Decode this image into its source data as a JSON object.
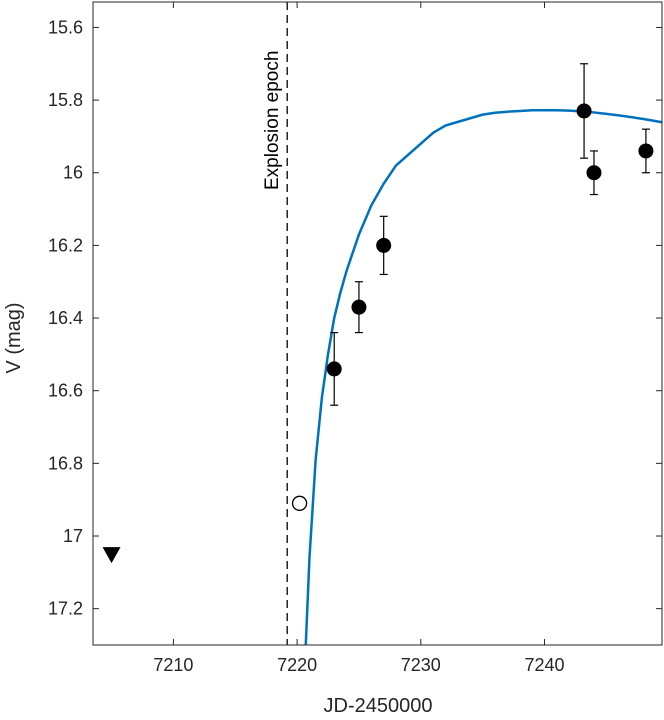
{
  "chart_data": {
    "type": "scatter",
    "xlabel": "JD-2450000",
    "ylabel": "V (mag)",
    "xlim": [
      7203.5,
      7249.5
    ],
    "ylim": [
      15.53,
      17.3
    ],
    "y_reversed": true,
    "grid": false,
    "xticks": [
      7210,
      7220,
      7230,
      7240
    ],
    "yticks": [
      15.6,
      15.8,
      16,
      16.2,
      16.4,
      16.6,
      16.8,
      17,
      17.2
    ],
    "ytick_labels": [
      "15.6",
      "15.8",
      "16",
      "16.2",
      "16.4",
      "16.6",
      "16.8",
      "17",
      "17.2"
    ],
    "detections": {
      "x": [
        7223,
        7225,
        7227,
        7243.2,
        7244,
        7248.2
      ],
      "y": [
        16.54,
        16.37,
        16.2,
        15.83,
        16.0,
        15.94
      ],
      "err": [
        0.1,
        0.07,
        0.08,
        0.13,
        0.06,
        0.06
      ],
      "color": "#000000"
    },
    "open_point": {
      "x": 7220.2,
      "y": 16.91
    },
    "upper_limit": {
      "x": 7205,
      "y": 17.05
    },
    "explosion_epoch": {
      "x": 7219.2,
      "label": "Explosion epoch"
    },
    "fit_curve": {
      "color": "#0072BD",
      "x": [
        7220.7,
        7221,
        7221.5,
        7222,
        7222.5,
        7223,
        7223.5,
        7224,
        7225,
        7226,
        7227,
        7228,
        7229,
        7230,
        7231,
        7232,
        7233,
        7234,
        7235,
        7236,
        7237,
        7238,
        7239,
        7240,
        7241,
        7242,
        7243,
        7244,
        7245,
        7246,
        7247,
        7248,
        7249,
        7249.5
      ],
      "y": [
        17.3,
        17.06,
        16.79,
        16.62,
        16.5,
        16.4,
        16.33,
        16.27,
        16.17,
        16.09,
        16.03,
        15.98,
        15.95,
        15.92,
        15.89,
        15.87,
        15.86,
        15.85,
        15.84,
        15.835,
        15.832,
        15.83,
        15.828,
        15.828,
        15.828,
        15.829,
        15.831,
        15.834,
        15.838,
        15.842,
        15.847,
        15.852,
        15.858,
        15.861
      ]
    }
  }
}
